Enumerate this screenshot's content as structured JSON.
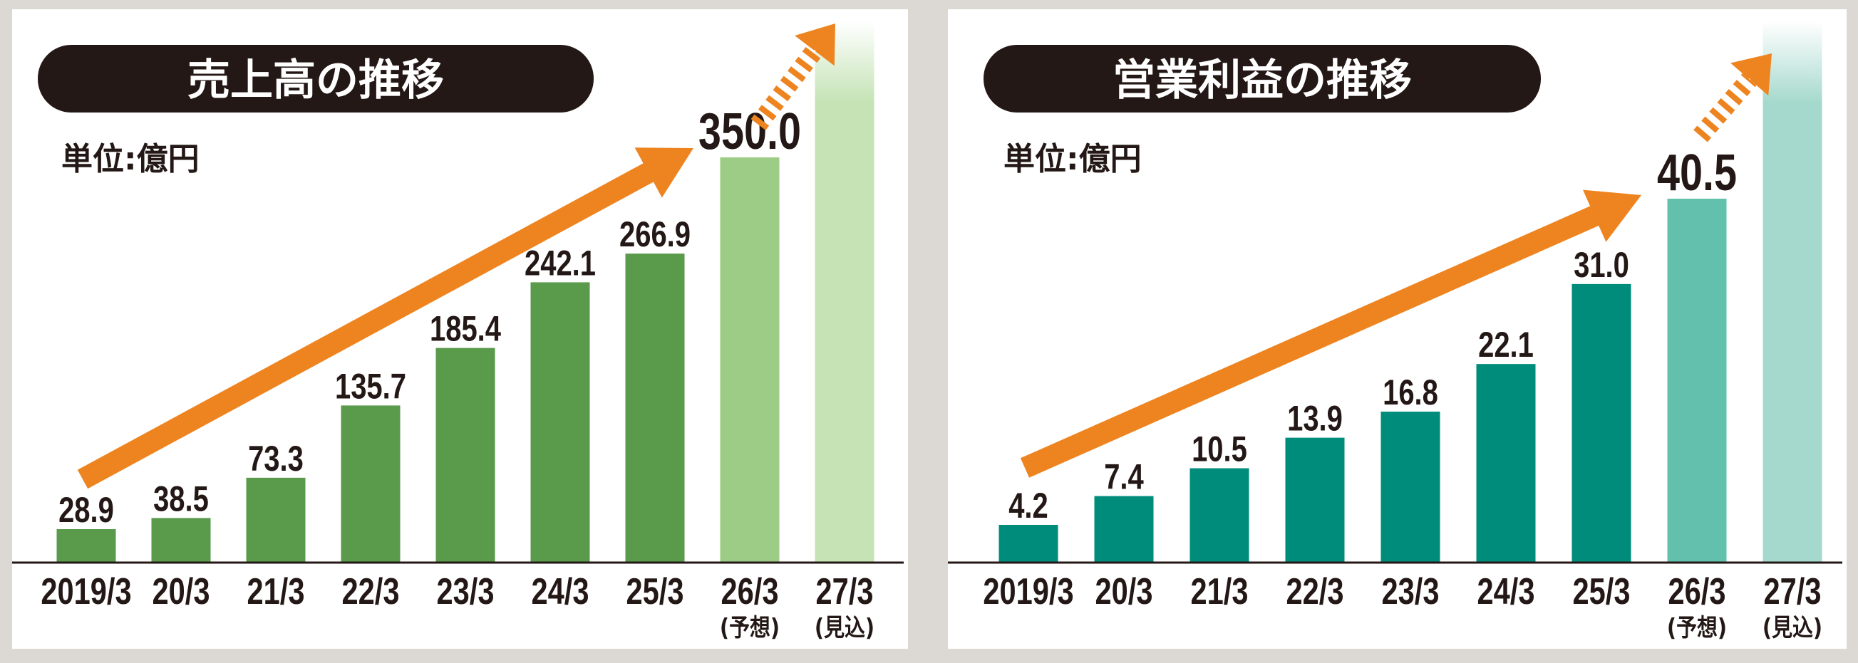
{
  "colors": {
    "background": "#dcd8d3",
    "title_pill": "#231815",
    "trend_arrow": "#ee8420"
  },
  "chart_data": [
    {
      "type": "bar",
      "title": "売上高の推移",
      "unit_label": "単位:億円",
      "categories": [
        "2019/3",
        "20/3",
        "21/3",
        "22/3",
        "23/3",
        "24/3",
        "25/3",
        "26/3",
        "27/3"
      ],
      "category_notes": [
        "",
        "",
        "",
        "",
        "",
        "",
        "",
        "(予想)",
        "(見込)"
      ],
      "values": [
        28.9,
        38.5,
        73.3,
        135.7,
        185.4,
        242.1,
        266.9,
        350.0,
        null
      ],
      "value_labels": [
        "28.9",
        "38.5",
        "73.3",
        "135.7",
        "185.4",
        "242.1",
        "266.9",
        "350.0",
        ""
      ],
      "ylim": [
        0,
        350
      ],
      "grid": false,
      "colors": {
        "actual": "#5a9a4b",
        "forecast": "#9ccc85",
        "outlook": "#c5e3b5"
      }
    },
    {
      "type": "bar",
      "title": "営業利益の推移",
      "unit_label": "単位:億円",
      "categories": [
        "2019/3",
        "20/3",
        "21/3",
        "22/3",
        "23/3",
        "24/3",
        "25/3",
        "26/3",
        "27/3"
      ],
      "category_notes": [
        "",
        "",
        "",
        "",
        "",
        "",
        "",
        "(予想)",
        "(見込)"
      ],
      "values": [
        4.2,
        7.4,
        10.5,
        13.9,
        16.8,
        22.1,
        31.0,
        40.5,
        null
      ],
      "value_labels": [
        "4.2",
        "7.4",
        "10.5",
        "13.9",
        "16.8",
        "22.1",
        "31.0",
        "40.5",
        ""
      ],
      "ylim": [
        0,
        40.5
      ],
      "grid": false,
      "colors": {
        "actual": "#008c7a",
        "forecast": "#62c0ad",
        "outlook": "#a6d9cd"
      }
    }
  ]
}
